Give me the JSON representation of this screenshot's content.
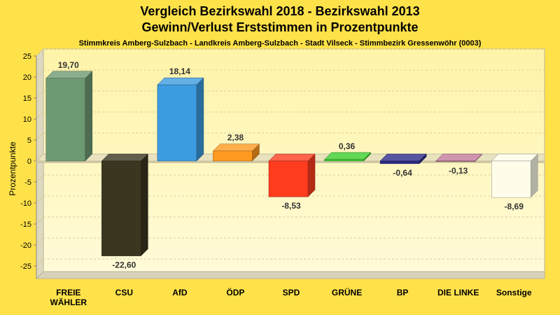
{
  "chart_data": {
    "type": "bar",
    "title": "Vergleich Bezirkswahl 2018 - Bezirkswahl 2013",
    "title2": "Gewinn/Verlust Erststimmen in Prozentpunkte",
    "subtitle": "Stimmkreis Amberg-Sulzbach - Landkreis Amberg-Sulzbach - Stadt Vilseck - Stimmbezirk Gressenwöhr (0003)",
    "ylabel": "Prozentpunkte",
    "ylim": [
      -28,
      25
    ],
    "yticks": [
      25,
      20,
      15,
      10,
      5,
      0,
      -5,
      -10,
      -15,
      -20,
      -25
    ],
    "grid": true,
    "categories": [
      [
        "FREIE",
        "WÄHLER"
      ],
      [
        "CSU"
      ],
      [
        "AfD"
      ],
      [
        "ÖDP"
      ],
      [
        "SPD"
      ],
      [
        "GRÜNE"
      ],
      [
        "BP"
      ],
      [
        "DIE LINKE"
      ],
      [
        "Sonstige"
      ]
    ],
    "values": [
      19.7,
      -22.6,
      18.14,
      2.38,
      -8.53,
      0.36,
      -0.64,
      -0.13,
      -8.69
    ],
    "value_labels": [
      "19,70",
      "-22,60",
      "18,14",
      "2,38",
      "-8,53",
      "0,36",
      "-0,64",
      "-0,13",
      "-8,69"
    ],
    "colors": [
      "#6e9a73",
      "#3b3620",
      "#3d9be0",
      "#ff9a1e",
      "#ff3c1e",
      "#3ccd2c",
      "#2a2a88",
      "#c47a9a",
      "#fffdea"
    ]
  }
}
